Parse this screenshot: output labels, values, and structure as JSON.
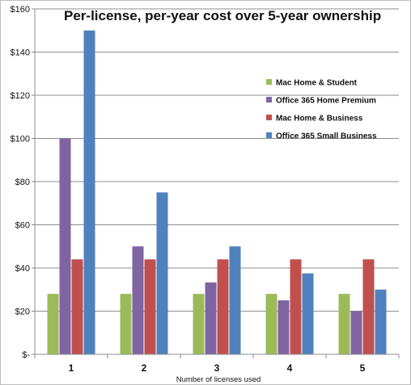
{
  "chart_data": {
    "type": "bar",
    "title": "Per-license, per-year cost over 5-year ownership",
    "xlabel": "Number of licenses used",
    "ylabel": "",
    "categories": [
      "1",
      "2",
      "3",
      "4",
      "5"
    ],
    "ylim": [
      0,
      160
    ],
    "y_tick_values": [
      0,
      20,
      40,
      60,
      80,
      100,
      120,
      140,
      160
    ],
    "y_tick_labels": [
      "$-",
      "$20",
      "$40",
      "$60",
      "$80",
      "$100",
      "$120",
      "$140",
      "$160"
    ],
    "grid": true,
    "legend_position": "right",
    "series": [
      {
        "name": "Mac Home & Student",
        "color": "#9BBB59",
        "values": [
          28,
          28,
          28,
          28,
          28
        ]
      },
      {
        "name": "Office 365 Home Premium",
        "color": "#8064A2",
        "values": [
          100,
          50,
          33.3,
          25,
          20
        ]
      },
      {
        "name": "Mac Home & Business",
        "color": "#C0504D",
        "values": [
          44,
          44,
          44,
          44,
          44
        ]
      },
      {
        "name": "Office 365 Small Business",
        "color": "#4F81BD",
        "values": [
          150,
          75,
          50,
          37.5,
          30
        ]
      }
    ]
  }
}
